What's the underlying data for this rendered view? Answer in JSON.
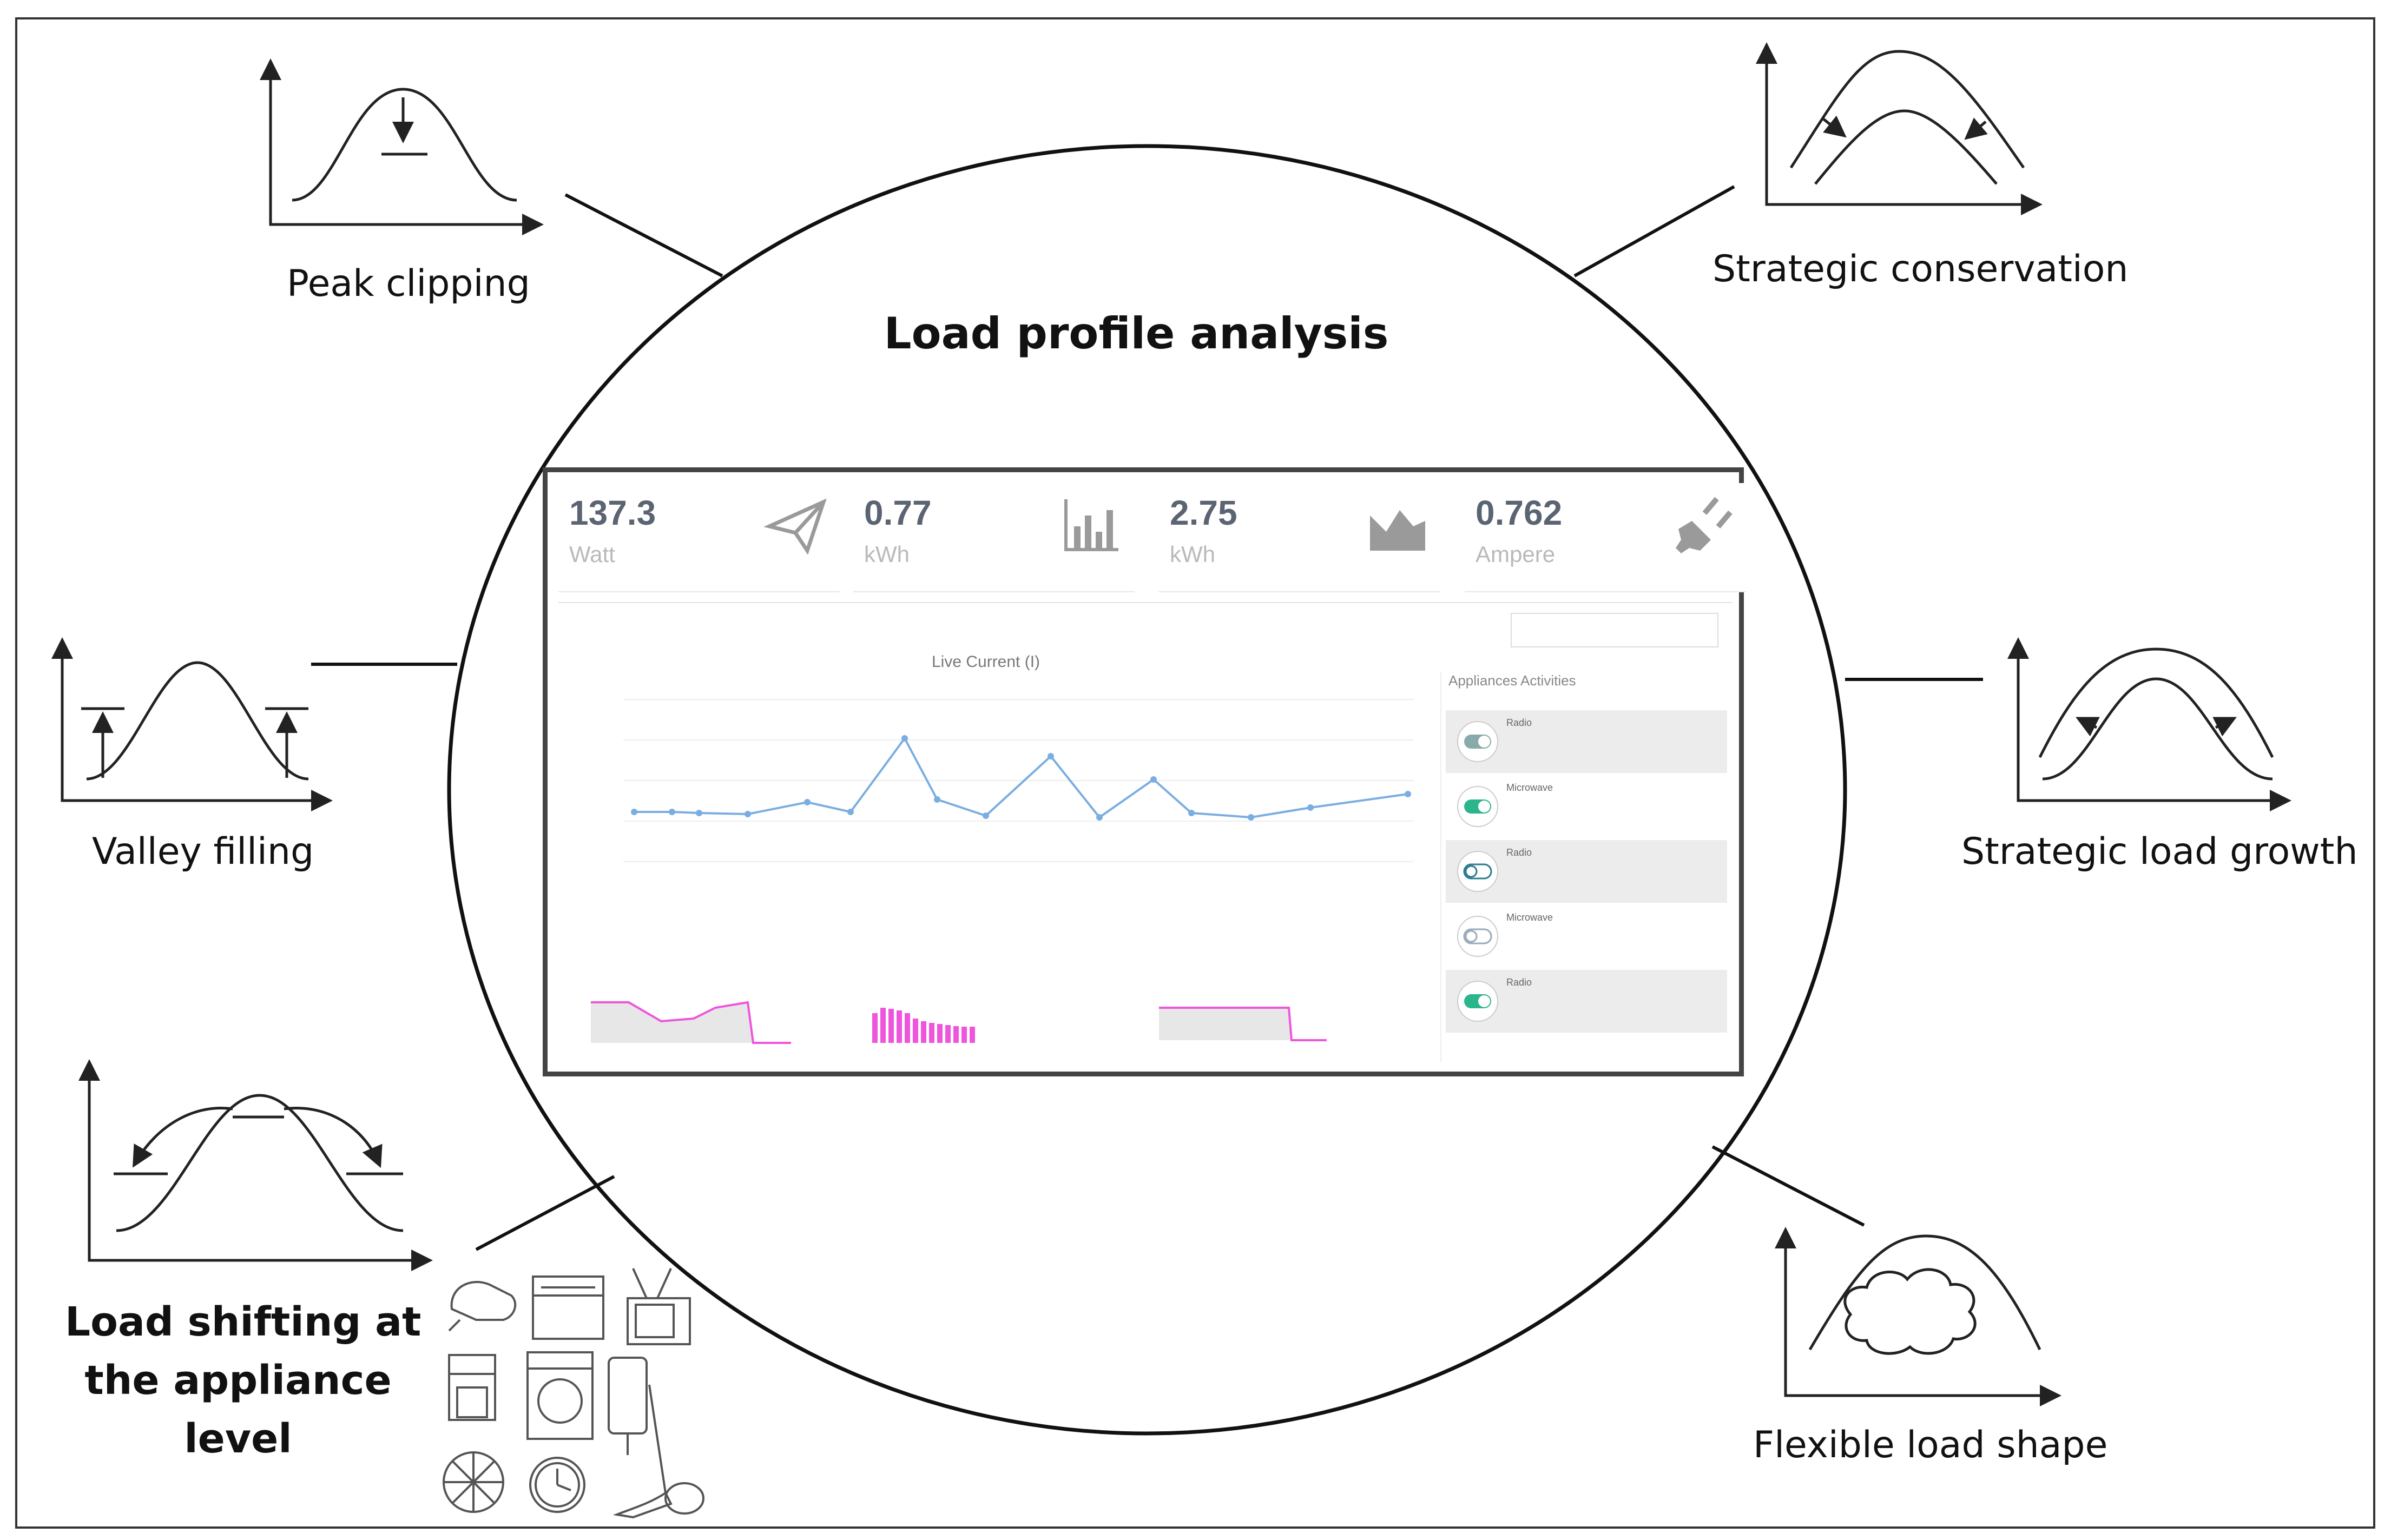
{
  "title": "Load profile analysis",
  "strategies": {
    "peak_clipping": "Peak clipping",
    "strategic_conservation": "Strategic conservation",
    "valley_filling": "Valley filling",
    "strategic_load_growth": "Strategic load growth",
    "load_shifting_line1": "Load shifting at",
    "load_shifting_line2": "the appliance",
    "load_shifting_line3": "level",
    "flexible_load_shape": "Flexible load shape"
  },
  "dashboard": {
    "cards": [
      {
        "value": "137.3",
        "unit": "Watt",
        "icon": "paper-plane-icon"
      },
      {
        "value": "0.77",
        "unit": "kWh",
        "icon": "bar-chart-icon"
      },
      {
        "value": "2.75",
        "unit": "kWh",
        "icon": "area-chart-icon"
      },
      {
        "value": "0.762",
        "unit": "Ampere",
        "icon": "plug-icon"
      }
    ],
    "live_chart_title": "Live Current (I)",
    "appliances_header": "Appliances Activities",
    "appliances": [
      {
        "name": "Radio",
        "state": "on"
      },
      {
        "name": "Microwave",
        "state": "on"
      },
      {
        "name": "Radio",
        "state": "off"
      },
      {
        "name": "Microwave",
        "state": "off"
      },
      {
        "name": "Radio",
        "state": "on"
      }
    ]
  },
  "colors": {
    "line": "#7aaee0",
    "toggle_on": "#2bb58a",
    "spark_pink": "#ee55dd",
    "frame": "#444444"
  }
}
